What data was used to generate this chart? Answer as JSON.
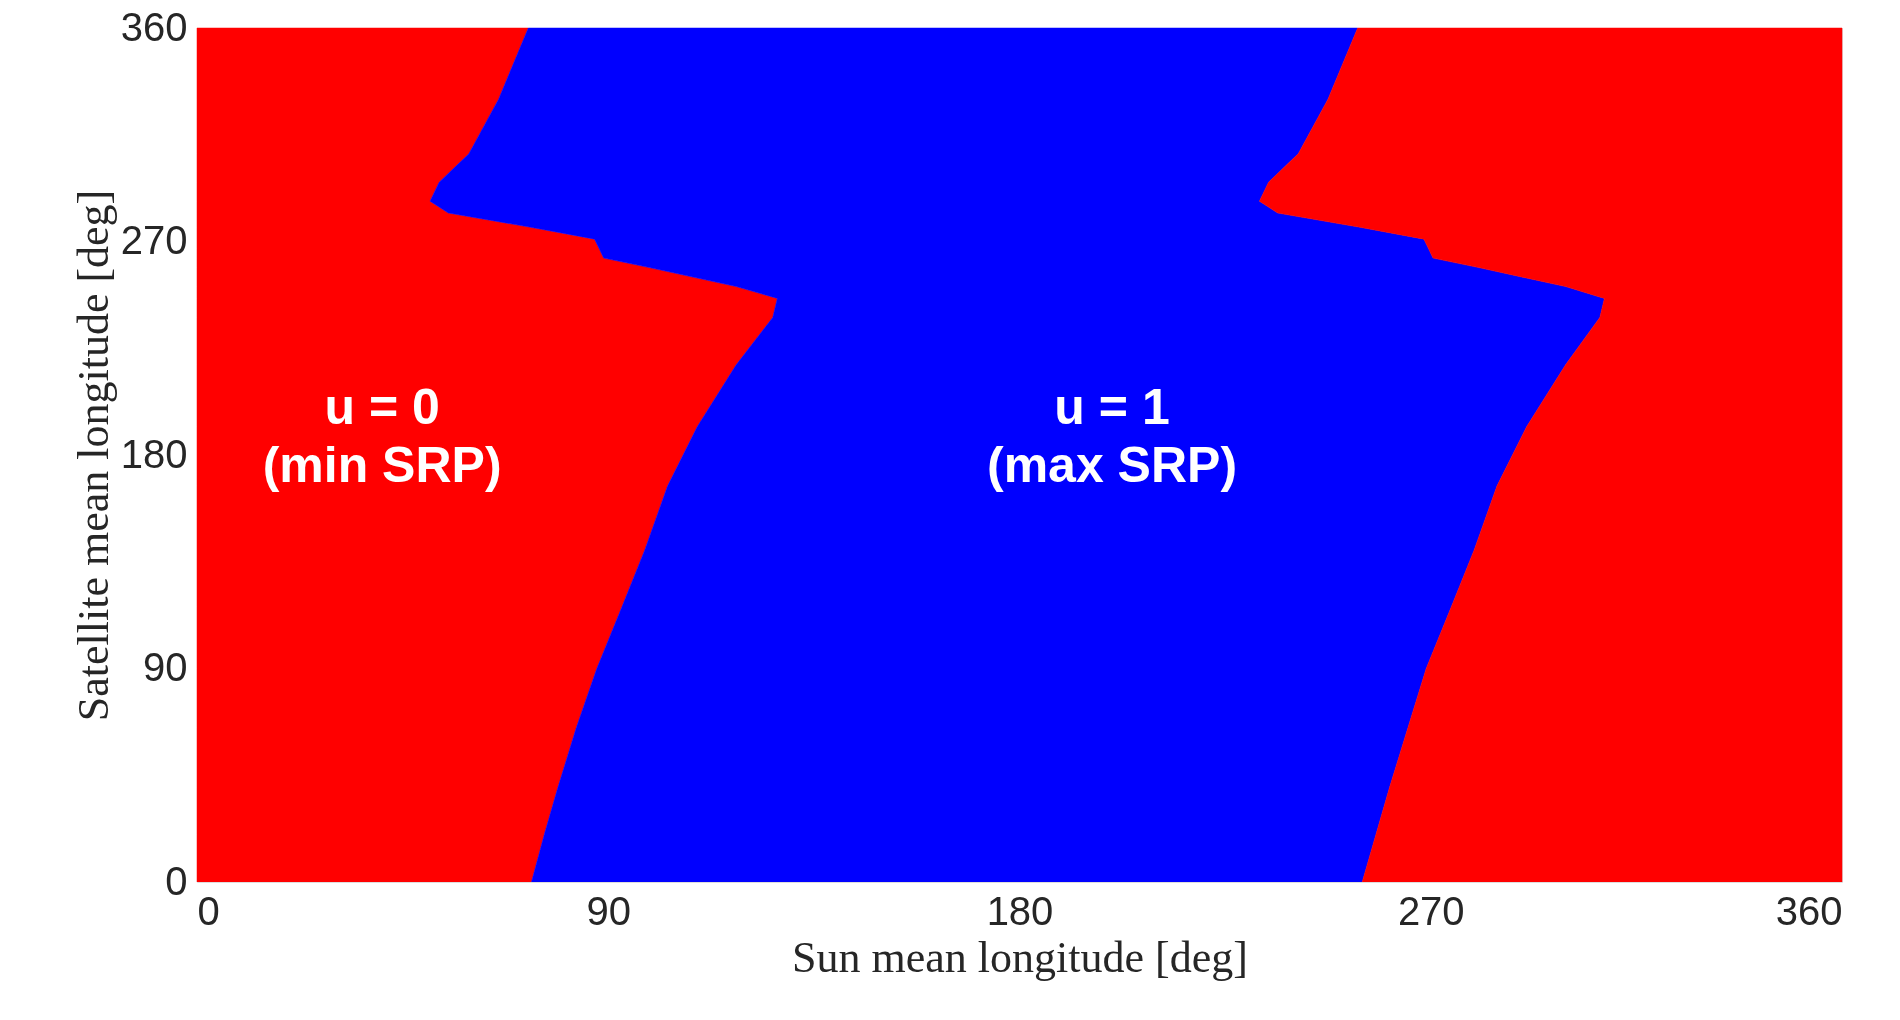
{
  "chart_data": {
    "type": "area",
    "orientation": "horizontal",
    "stacked": true,
    "x": [
      0,
      20,
      40,
      65,
      90,
      116,
      140,
      167,
      192,
      218,
      238,
      246,
      251,
      259,
      263,
      267,
      271,
      276,
      282,
      287,
      295,
      307,
      330,
      360
    ],
    "series": [
      {
        "color": "#ff0000",
        "values": [
          73.2,
          76,
          79,
          83,
          87.5,
          93,
          98,
          103,
          109.5,
          118,
          126,
          127,
          118,
          99,
          89,
          88,
          87,
          73,
          55,
          51,
          53,
          59.5,
          66,
          72.5
        ]
      },
      {
        "color": "#0000ff",
        "values": [
          181.8,
          182,
          182,
          182,
          181.5,
          181.5,
          181.5,
          181.5,
          181.5,
          181.5,
          181,
          181,
          181.5,
          181.5,
          181.5,
          181.5,
          181.5,
          181.5,
          181.5,
          181.5,
          181.5,
          181.5,
          181.5,
          181.5
        ]
      },
      {
        "color": "#ff0000",
        "values": [
          105,
          102,
          99,
          95,
          91,
          85.5,
          80.5,
          75.5,
          69,
          60.5,
          53,
          52,
          60.5,
          79.5,
          89.5,
          90.5,
          91.5,
          105.5,
          123.5,
          127.5,
          125.5,
          119,
          112.5,
          106
        ]
      }
    ],
    "xlim": [
      0,
      360
    ],
    "xticks": [
      0,
      90,
      180,
      270,
      360
    ],
    "ylim": [
      0,
      360
    ],
    "yticks": [
      0,
      90,
      180,
      270,
      360
    ],
    "xlabel": "Sun mean longitude [deg]",
    "ylabel": "Satellite mean longitude [deg]",
    "annotations": [
      "u = 0\n(min SRP)",
      "u = 1\n(max SRP)"
    ],
    "grid": false
  }
}
